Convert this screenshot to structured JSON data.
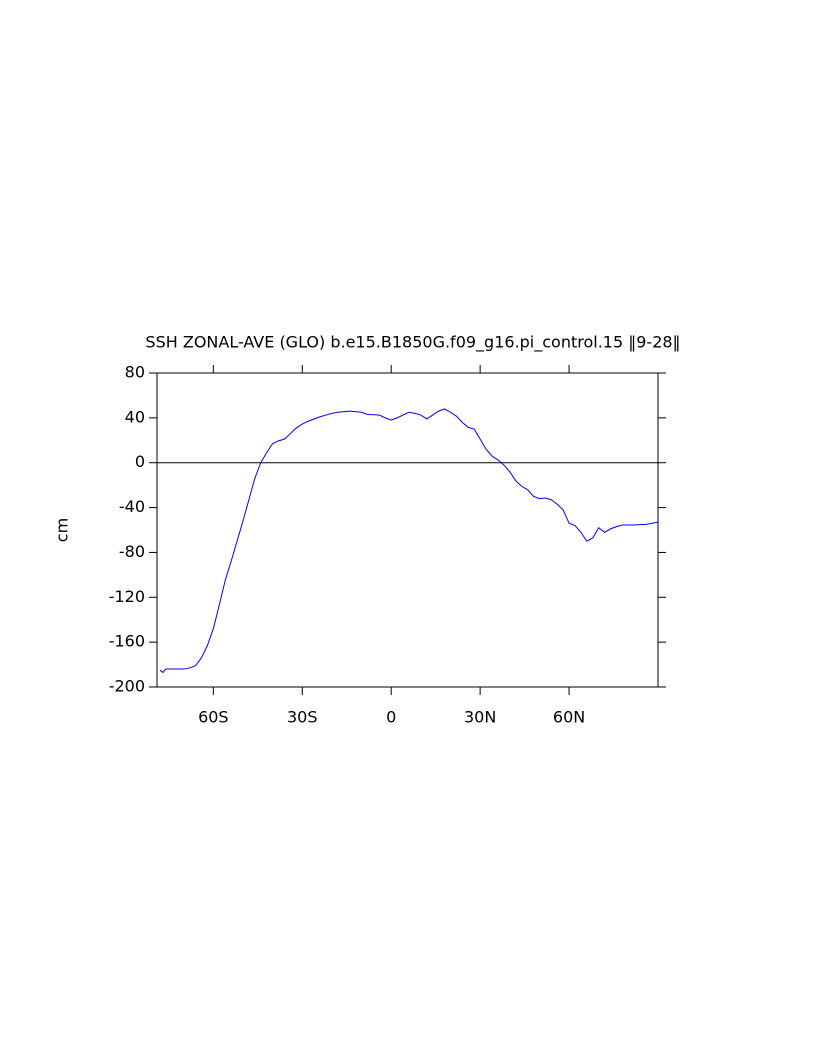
{
  "chart_data": {
    "type": "line",
    "title": "SSH ZONAL-AVE (GLO) b.e15.B1850G.f09_g16.pi_control.15 ‖9-28‖",
    "y_label": "cm",
    "x": [
      -78,
      -77,
      -76,
      -72,
      -70,
      -68,
      -66,
      -64,
      -62,
      -60,
      -58,
      -56,
      -54,
      -52,
      -50,
      -48,
      -46,
      -44,
      -42,
      -40,
      -38,
      -36,
      -34,
      -32,
      -30,
      -28,
      -26,
      -24,
      -22,
      -20,
      -18,
      -14,
      -10,
      -8,
      -4,
      -2,
      0,
      2,
      4,
      6,
      8,
      10,
      12,
      14,
      16,
      18,
      20,
      22,
      24,
      26,
      28,
      30,
      32,
      34,
      36,
      38,
      40,
      42,
      44,
      46,
      48,
      50,
      52,
      54,
      56,
      58,
      60,
      62,
      64,
      66,
      68,
      70,
      72,
      74,
      76,
      78,
      82,
      86,
      90
    ],
    "series": [
      {
        "name": "SSH",
        "color": "#0000ff",
        "values": [
          -185,
          -187,
          -184,
          -184,
          -184,
          -183,
          -181,
          -174,
          -163,
          -148,
          -127,
          -105,
          -88,
          -70,
          -52,
          -33,
          -14,
          0,
          9,
          17,
          19.5,
          21,
          26,
          31,
          34.5,
          37,
          39,
          41,
          42.5,
          44,
          45,
          46,
          45,
          43,
          42.5,
          40,
          38,
          40,
          42.5,
          45,
          44,
          42.5,
          39,
          42.5,
          46,
          48,
          45,
          41.5,
          36,
          31.5,
          30,
          21,
          12,
          6,
          2.5,
          -2,
          -8,
          -16,
          -21,
          -24,
          -30,
          -32,
          -31.5,
          -33,
          -37,
          -42,
          -54,
          -56,
          -62,
          -70,
          -67,
          -58,
          -62,
          -59,
          -57,
          -55.5,
          -55.5,
          -55,
          -53
        ]
      }
    ],
    "xlim": [
      -79,
      90
    ],
    "ylim": [
      -200,
      80
    ],
    "xticks": [
      {
        "value": -60,
        "label": "60S"
      },
      {
        "value": -30,
        "label": "30S"
      },
      0,
      {
        "value": 30,
        "label": "30N"
      },
      {
        "value": 60,
        "label": "60N"
      }
    ],
    "yticks": [
      80,
      40,
      0,
      -40,
      -80,
      -120,
      -160,
      -200
    ],
    "reference_line": 0
  }
}
